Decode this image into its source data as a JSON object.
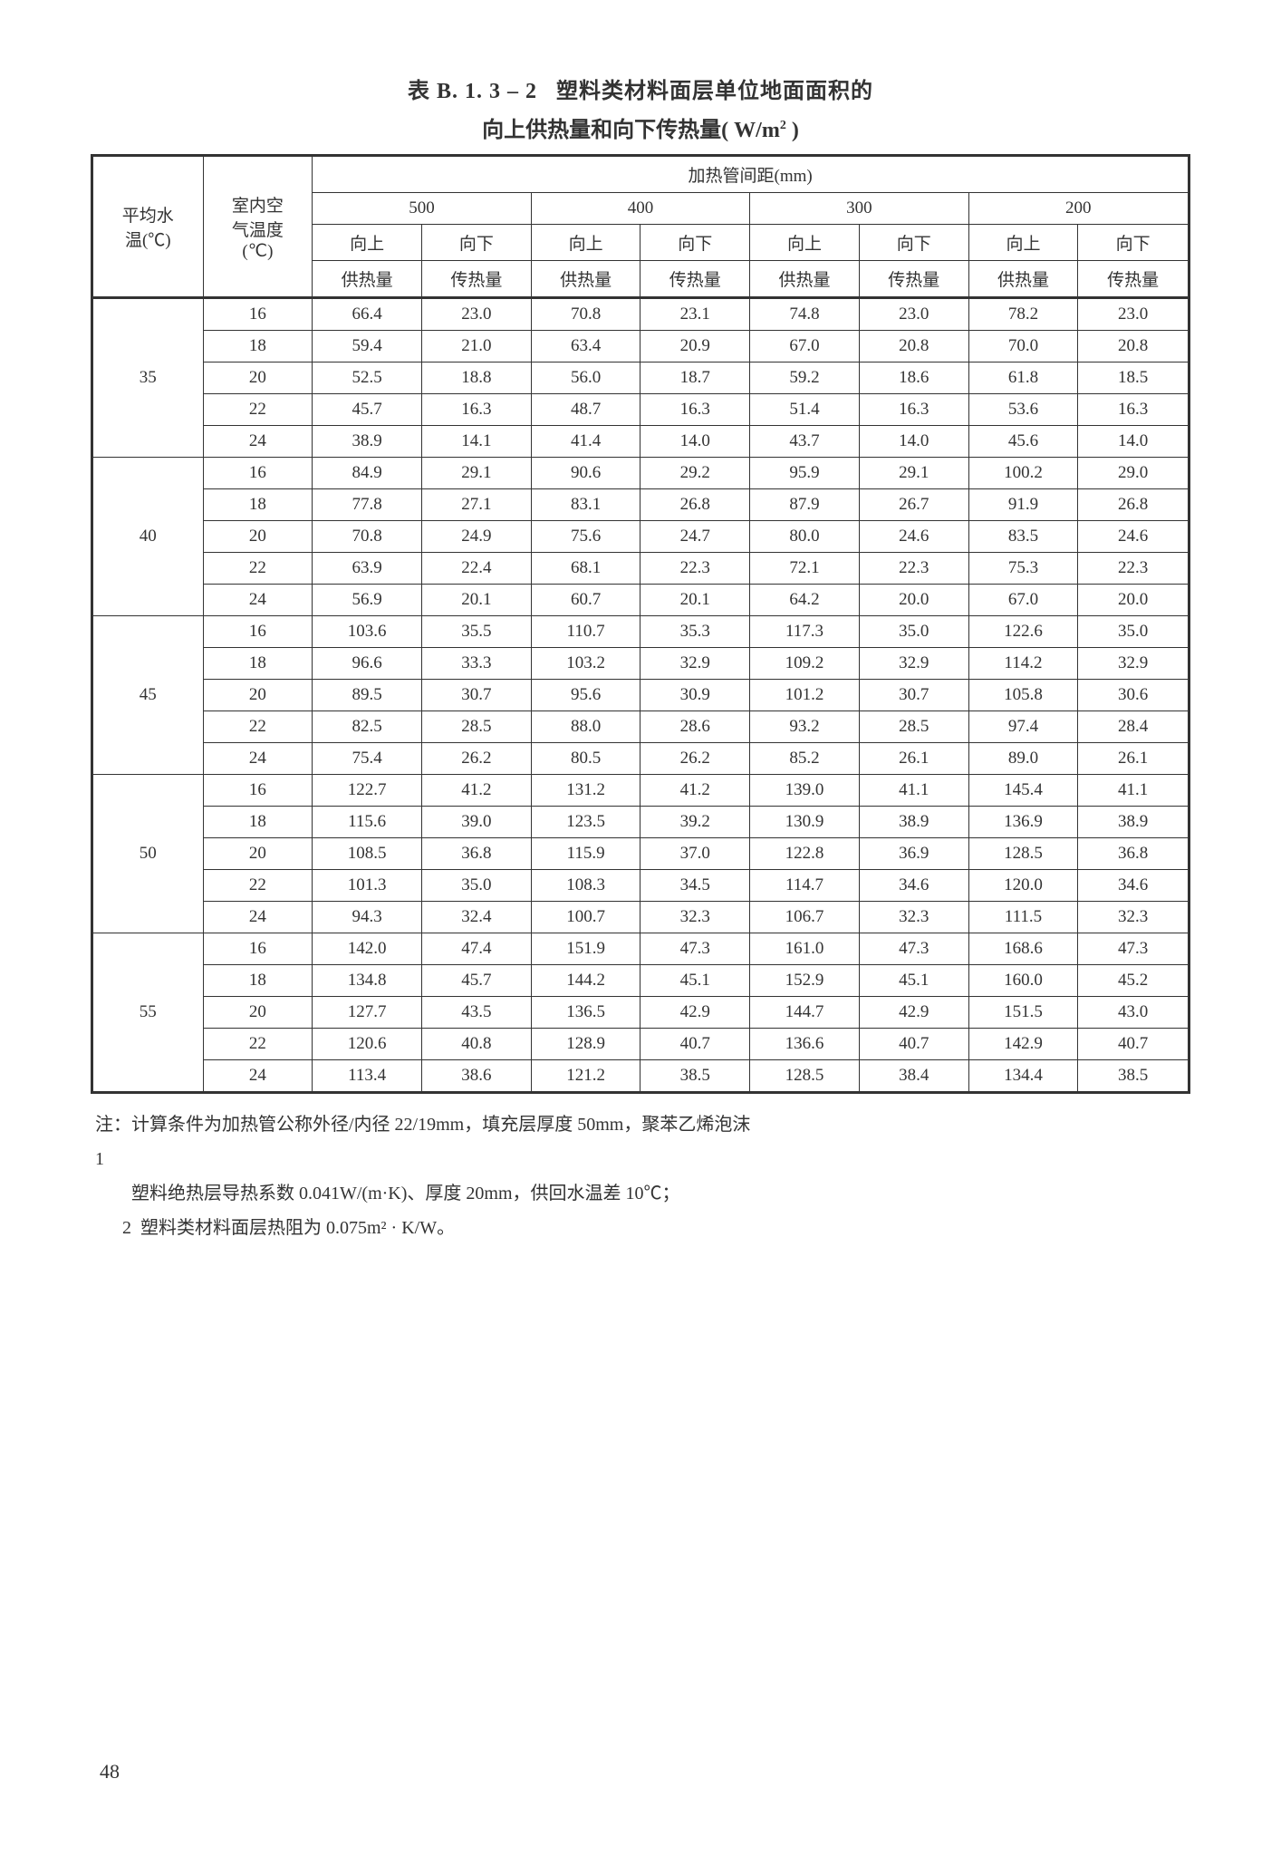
{
  "title": {
    "number": "表 B. 1. 3 – 2",
    "line1_rest": "塑料类材料面层单位地面面积的",
    "line2_pre": "向上供热量和向下传热量( W/m",
    "line2_post": " )"
  },
  "headers": {
    "col1_line1": "平均水",
    "col1_line2": "温(℃)",
    "col2_line1": "室内空",
    "col2_line2": "气温度",
    "col2_line3": "(℃)",
    "spacing_header": "加热管间距(mm)",
    "spacings": [
      "500",
      "400",
      "300",
      "200"
    ],
    "sub_up_l1": "向上",
    "sub_up_l2": "供热量",
    "sub_down_l1": "向下",
    "sub_down_l2": "传热量"
  },
  "groups": [
    {
      "temp": "35",
      "rows": [
        {
          "air": "16",
          "v": [
            "66.4",
            "23.0",
            "70.8",
            "23.1",
            "74.8",
            "23.0",
            "78.2",
            "23.0"
          ]
        },
        {
          "air": "18",
          "v": [
            "59.4",
            "21.0",
            "63.4",
            "20.9",
            "67.0",
            "20.8",
            "70.0",
            "20.8"
          ]
        },
        {
          "air": "20",
          "v": [
            "52.5",
            "18.8",
            "56.0",
            "18.7",
            "59.2",
            "18.6",
            "61.8",
            "18.5"
          ]
        },
        {
          "air": "22",
          "v": [
            "45.7",
            "16.3",
            "48.7",
            "16.3",
            "51.4",
            "16.3",
            "53.6",
            "16.3"
          ]
        },
        {
          "air": "24",
          "v": [
            "38.9",
            "14.1",
            "41.4",
            "14.0",
            "43.7",
            "14.0",
            "45.6",
            "14.0"
          ]
        }
      ]
    },
    {
      "temp": "40",
      "rows": [
        {
          "air": "16",
          "v": [
            "84.9",
            "29.1",
            "90.6",
            "29.2",
            "95.9",
            "29.1",
            "100.2",
            "29.0"
          ]
        },
        {
          "air": "18",
          "v": [
            "77.8",
            "27.1",
            "83.1",
            "26.8",
            "87.9",
            "26.7",
            "91.9",
            "26.8"
          ]
        },
        {
          "air": "20",
          "v": [
            "70.8",
            "24.9",
            "75.6",
            "24.7",
            "80.0",
            "24.6",
            "83.5",
            "24.6"
          ]
        },
        {
          "air": "22",
          "v": [
            "63.9",
            "22.4",
            "68.1",
            "22.3",
            "72.1",
            "22.3",
            "75.3",
            "22.3"
          ]
        },
        {
          "air": "24",
          "v": [
            "56.9",
            "20.1",
            "60.7",
            "20.1",
            "64.2",
            "20.0",
            "67.0",
            "20.0"
          ]
        }
      ]
    },
    {
      "temp": "45",
      "rows": [
        {
          "air": "16",
          "v": [
            "103.6",
            "35.5",
            "110.7",
            "35.3",
            "117.3",
            "35.0",
            "122.6",
            "35.0"
          ]
        },
        {
          "air": "18",
          "v": [
            "96.6",
            "33.3",
            "103.2",
            "32.9",
            "109.2",
            "32.9",
            "114.2",
            "32.9"
          ]
        },
        {
          "air": "20",
          "v": [
            "89.5",
            "30.7",
            "95.6",
            "30.9",
            "101.2",
            "30.7",
            "105.8",
            "30.6"
          ]
        },
        {
          "air": "22",
          "v": [
            "82.5",
            "28.5",
            "88.0",
            "28.6",
            "93.2",
            "28.5",
            "97.4",
            "28.4"
          ]
        },
        {
          "air": "24",
          "v": [
            "75.4",
            "26.2",
            "80.5",
            "26.2",
            "85.2",
            "26.1",
            "89.0",
            "26.1"
          ]
        }
      ]
    },
    {
      "temp": "50",
      "rows": [
        {
          "air": "16",
          "v": [
            "122.7",
            "41.2",
            "131.2",
            "41.2",
            "139.0",
            "41.1",
            "145.4",
            "41.1"
          ]
        },
        {
          "air": "18",
          "v": [
            "115.6",
            "39.0",
            "123.5",
            "39.2",
            "130.9",
            "38.9",
            "136.9",
            "38.9"
          ]
        },
        {
          "air": "20",
          "v": [
            "108.5",
            "36.8",
            "115.9",
            "37.0",
            "122.8",
            "36.9",
            "128.5",
            "36.8"
          ]
        },
        {
          "air": "22",
          "v": [
            "101.3",
            "35.0",
            "108.3",
            "34.5",
            "114.7",
            "34.6",
            "120.0",
            "34.6"
          ]
        },
        {
          "air": "24",
          "v": [
            "94.3",
            "32.4",
            "100.7",
            "32.3",
            "106.7",
            "32.3",
            "111.5",
            "32.3"
          ]
        }
      ]
    },
    {
      "temp": "55",
      "rows": [
        {
          "air": "16",
          "v": [
            "142.0",
            "47.4",
            "151.9",
            "47.3",
            "161.0",
            "47.3",
            "168.6",
            "47.3"
          ]
        },
        {
          "air": "18",
          "v": [
            "134.8",
            "45.7",
            "144.2",
            "45.1",
            "152.9",
            "45.1",
            "160.0",
            "45.2"
          ]
        },
        {
          "air": "20",
          "v": [
            "127.7",
            "43.5",
            "136.5",
            "42.9",
            "144.7",
            "42.9",
            "151.5",
            "43.0"
          ]
        },
        {
          "air": "22",
          "v": [
            "120.6",
            "40.8",
            "128.9",
            "40.7",
            "136.6",
            "40.7",
            "142.9",
            "40.7"
          ]
        },
        {
          "air": "24",
          "v": [
            "113.4",
            "38.6",
            "121.2",
            "38.5",
            "128.5",
            "38.4",
            "134.4",
            "38.5"
          ]
        }
      ]
    }
  ],
  "notes": {
    "label": "注：1",
    "n1_l1": "计算条件为加热管公称外径/内径 22/19mm，填充层厚度 50mm，聚苯乙烯泡沫",
    "n1_l2": "塑料绝热层导热系数 0.041W/(m·K)、厚度 20mm，供回水温差 10℃；",
    "n2_label": "2",
    "n2": "塑料类材料面层热阻为 0.075m² · K/W。"
  },
  "page": "48"
}
